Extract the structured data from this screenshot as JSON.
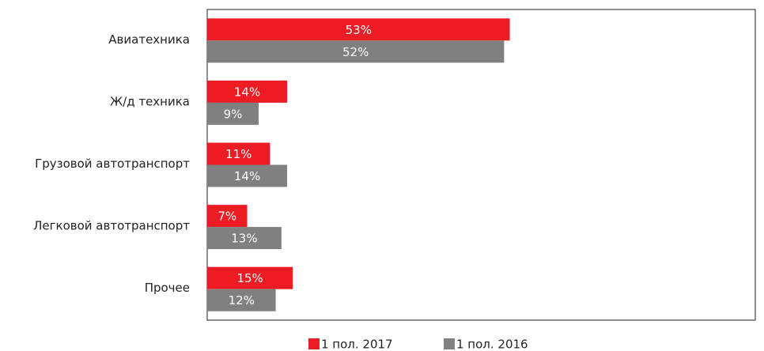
{
  "chart_data": {
    "type": "hbar",
    "categories": [
      "Авиатехника",
      "Ж/д техника",
      "Грузовой автотранспорт",
      "Легковой автотранспорт",
      "Прочее"
    ],
    "series": [
      {
        "name": "1 пол. 2017",
        "color": "#ed1c24",
        "values": [
          53,
          14,
          11,
          7,
          15
        ],
        "value_labels": [
          "53%",
          "14%",
          "11%",
          "7%",
          "15%"
        ]
      },
      {
        "name": "1 пол. 2016",
        "color": "#808080",
        "values": [
          52,
          9,
          14,
          13,
          12
        ],
        "value_labels": [
          "52%",
          "9%",
          "14%",
          "13%",
          "12%"
        ]
      }
    ],
    "xlim": [
      0,
      96
    ]
  }
}
